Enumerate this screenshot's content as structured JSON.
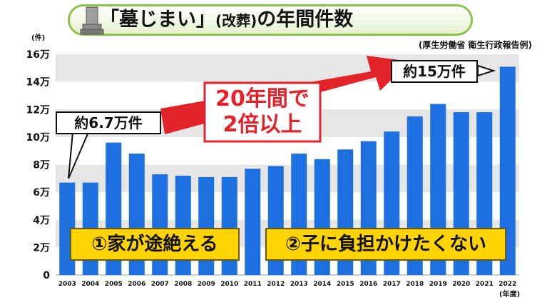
{
  "title": {
    "main": "「墓じまい」",
    "paren": "(改葬)",
    "tail": "の年間件数"
  },
  "source": "(厚生労働省 衛生行政報告例)",
  "y_unit": "(件)",
  "x_unit": "(年度)",
  "callouts": {
    "start": "約6.7万件",
    "end": "約15万件"
  },
  "arrow_text": {
    "line1": "20年間で",
    "line2": "2倍以上"
  },
  "reasons": {
    "r1": "①家が途絶える",
    "r2": "②子に負担かけたくない"
  },
  "colors": {
    "bar": "#1e6fe0",
    "arrow": "#e3232a",
    "banner": "#ffd400",
    "title_border": "#8bc34a"
  },
  "chart_data": {
    "type": "bar",
    "categories": [
      "2003",
      "2004",
      "2005",
      "2006",
      "2007",
      "2008",
      "2009",
      "2010",
      "2011",
      "2012",
      "2013",
      "2014",
      "2015",
      "2016",
      "2017",
      "2018",
      "2019",
      "2020",
      "2021",
      "2022"
    ],
    "values": [
      67000,
      67000,
      96000,
      88000,
      73000,
      72000,
      71000,
      71000,
      77000,
      79000,
      88000,
      84000,
      91000,
      97000,
      104000,
      115000,
      124000,
      118000,
      118000,
      151000
    ],
    "y_ticks": [
      0,
      20000,
      40000,
      60000,
      80000,
      100000,
      120000,
      140000,
      160000
    ],
    "y_tick_labels": [
      "0",
      "2万",
      "4万",
      "6万",
      "8万",
      "10万",
      "12万",
      "14万",
      "16万"
    ],
    "ylim": [
      0,
      160000
    ],
    "grid": "horizontal bands",
    "legend": "none"
  }
}
